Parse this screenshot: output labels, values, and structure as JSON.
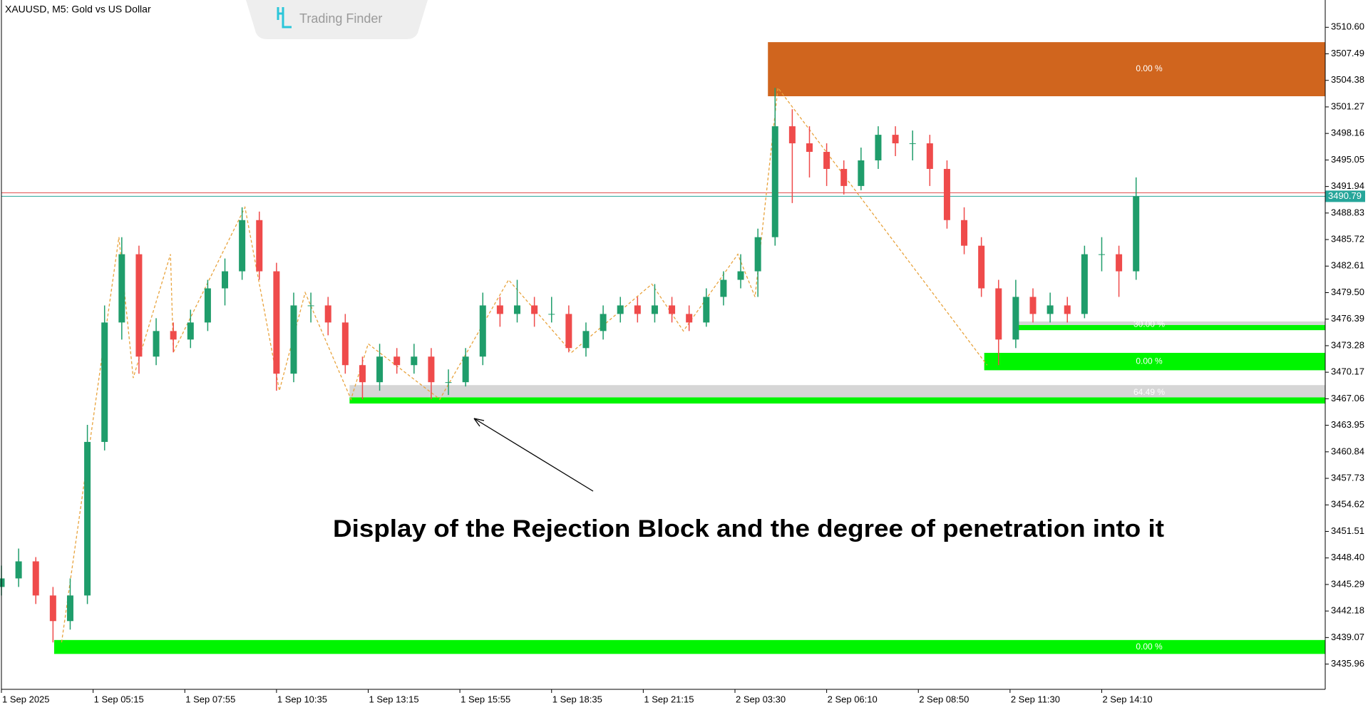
{
  "chart_data": {
    "type": "candlestick",
    "title": "XAUUSD, M5:  Gold vs US Dollar",
    "watermark": "Trading Finder",
    "annotation": "Display of the Rejection Block and the degree of penetration into it",
    "up_color": "#1f9d6b",
    "down_color": "#ef4b4b",
    "xlim": [
      0,
      462
    ],
    "ylim": [
      3433.0,
      3513.8
    ],
    "xticks": [
      {
        "value": 0,
        "label": "1 Sep 2025"
      },
      {
        "value": 32,
        "label": "1 Sep 05:15"
      },
      {
        "value": 64,
        "label": "1 Sep 07:55"
      },
      {
        "value": 96,
        "label": "1 Sep 10:35"
      },
      {
        "value": 128,
        "label": "1 Sep 13:15"
      },
      {
        "value": 160,
        "label": "1 Sep 15:55"
      },
      {
        "value": 192,
        "label": "1 Sep 18:35"
      },
      {
        "value": 224,
        "label": "1 Sep 21:15"
      },
      {
        "value": 256,
        "label": "2 Sep 03:30"
      },
      {
        "value": 288,
        "label": "2 Sep 06:10"
      },
      {
        "value": 320,
        "label": "2 Sep 08:50"
      },
      {
        "value": 352,
        "label": "2 Sep 11:30"
      },
      {
        "value": 384,
        "label": "2 Sep 14:10"
      }
    ],
    "yticks": [
      {
        "value": 3510.6,
        "label": "3510.60"
      },
      3507.49,
      3504.38,
      3501.27,
      3498.16,
      3495.05,
      3491.94,
      3488.83,
      3485.72,
      3482.61,
      {
        "value": 3479.5,
        "label": "3479.50"
      },
      3476.39,
      3473.28,
      3470.17,
      3467.06,
      3463.95,
      3460.84,
      3457.73,
      3454.62,
      3451.51,
      {
        "value": 3448.4,
        "label": "3448.40"
      },
      3445.29,
      3442.18,
      3439.07,
      3435.96
    ],
    "candles": [
      [
        0,
        3445,
        3447.5,
        3444,
        3446
      ],
      [
        6,
        3446,
        3449.5,
        3445,
        3448
      ],
      [
        12,
        3448,
        3448.5,
        3443,
        3444
      ],
      [
        18,
        3444,
        3445,
        3438.5,
        3441
      ],
      [
        24,
        3441,
        3446,
        3440,
        3444
      ],
      [
        30,
        3444,
        3464,
        3443,
        3462
      ],
      [
        36,
        3462,
        3478,
        3461,
        3476
      ],
      [
        42,
        3476,
        3486,
        3474,
        3484
      ],
      [
        48,
        3484,
        3485,
        3470,
        3472
      ],
      [
        54,
        3472,
        3476.5,
        3471,
        3475
      ],
      [
        60,
        3475,
        3476,
        3472.5,
        3474
      ],
      [
        66,
        3474,
        3477.5,
        3473,
        3476
      ],
      [
        72,
        3476,
        3481,
        3475,
        3480
      ],
      [
        78,
        3480,
        3483.5,
        3478,
        3482
      ],
      [
        84,
        3482,
        3489.5,
        3481,
        3488
      ],
      [
        90,
        3488,
        3489,
        3481,
        3482
      ],
      [
        96,
        3482,
        3483,
        3468,
        3470
      ],
      [
        102,
        3470,
        3479.5,
        3469,
        3478
      ],
      [
        108,
        3478,
        3479.5,
        3476,
        3478
      ],
      [
        114,
        3478,
        3479,
        3474.5,
        3476
      ],
      [
        120,
        3476,
        3477,
        3470,
        3471
      ],
      [
        126,
        3471,
        3472,
        3467,
        3469
      ],
      [
        132,
        3469,
        3473.5,
        3468,
        3472
      ],
      [
        138,
        3472,
        3473,
        3470,
        3471
      ],
      [
        144,
        3471,
        3473.5,
        3470,
        3472
      ],
      [
        150,
        3472,
        3473,
        3467,
        3469
      ],
      [
        156,
        3469,
        3470.5,
        3467.5,
        3469
      ],
      [
        162,
        3469,
        3473,
        3468.5,
        3472
      ],
      [
        168,
        3472,
        3479.5,
        3471,
        3478
      ],
      [
        174,
        3478,
        3479,
        3475.5,
        3477
      ],
      [
        180,
        3477,
        3481,
        3476,
        3478
      ],
      [
        186,
        3478,
        3479,
        3475.5,
        3477
      ],
      [
        192,
        3477,
        3479,
        3476,
        3477
      ],
      [
        198,
        3477,
        3478,
        3472.5,
        3473
      ],
      [
        204,
        3473,
        3476,
        3472,
        3475
      ],
      [
        210,
        3475,
        3478,
        3474,
        3477
      ],
      [
        216,
        3477,
        3479,
        3476,
        3478
      ],
      [
        222,
        3478,
        3479,
        3476,
        3477
      ],
      [
        228,
        3477,
        3480.5,
        3476,
        3478
      ],
      [
        234,
        3478,
        3479,
        3476,
        3477
      ],
      [
        240,
        3477,
        3478,
        3475,
        3476
      ],
      [
        246,
        3476,
        3480,
        3475.5,
        3479
      ],
      [
        252,
        3479,
        3482,
        3478,
        3481
      ],
      [
        258,
        3481,
        3484,
        3480,
        3482
      ],
      [
        264,
        3482,
        3487,
        3479,
        3486
      ],
      [
        270,
        3486,
        3503.5,
        3485,
        3499
      ],
      [
        276,
        3499,
        3501,
        3490,
        3497
      ],
      [
        282,
        3497,
        3499,
        3493,
        3496
      ],
      [
        288,
        3496,
        3497,
        3492,
        3494
      ],
      [
        294,
        3494,
        3495,
        3491,
        3492
      ],
      [
        300,
        3492,
        3496.5,
        3491.5,
        3495
      ],
      [
        306,
        3495,
        3499,
        3494,
        3498
      ],
      [
        312,
        3498,
        3499,
        3495.5,
        3497
      ],
      [
        318,
        3497,
        3498.5,
        3495,
        3497
      ],
      [
        324,
        3497,
        3498,
        3492,
        3494
      ],
      [
        330,
        3494,
        3495,
        3487,
        3488
      ],
      [
        336,
        3488,
        3489.5,
        3484,
        3485
      ],
      [
        342,
        3485,
        3486,
        3479,
        3480
      ],
      [
        348,
        3480,
        3481,
        3471,
        3474
      ],
      [
        354,
        3474,
        3481,
        3473,
        3479
      ],
      [
        360,
        3479,
        3480,
        3476,
        3477
      ],
      [
        366,
        3477,
        3479.5,
        3476,
        3478
      ],
      [
        372,
        3478,
        3479,
        3476,
        3477
      ],
      [
        378,
        3477,
        3485,
        3476.5,
        3484
      ],
      [
        384,
        3484,
        3486,
        3482,
        3484
      ],
      [
        390,
        3484,
        3485,
        3479,
        3482
      ],
      [
        396,
        3482,
        3493,
        3481,
        3490.79
      ]
    ],
    "zigzag": {
      "color": "#e8a33d",
      "x": [
        21,
        41,
        46,
        59,
        60,
        85,
        97,
        106,
        122,
        128,
        153,
        177,
        199,
        227,
        238,
        257,
        263,
        271,
        344
      ],
      "y": [
        3438.5,
        3486,
        3469.5,
        3484,
        3472.5,
        3489.5,
        3468,
        3479.5,
        3467,
        3473.5,
        3467,
        3481,
        3472.5,
        3480.5,
        3475,
        3484,
        3479,
        3503.5,
        3471
      ]
    },
    "zones": [
      {
        "x": 267.5,
        "top": 3508.86,
        "bottom": 3502.52,
        "color": "#d0651e",
        "label": "0.00 %"
      },
      {
        "x": 353,
        "grey_top": 3476.12,
        "top": 3475.7,
        "bottom": 3475.1,
        "color": "#00f500",
        "label": "30.00 %"
      },
      {
        "x": 343,
        "top": 3472.44,
        "bottom": 3470.4,
        "color": "#00f500",
        "label": "0.00 %"
      },
      {
        "x": 121.5,
        "grey_top": 3468.66,
        "top": 3467.22,
        "bottom": 3466.5,
        "color": "#00f500",
        "label": "64.49 %"
      },
      {
        "x": 18.4,
        "top": 3438.78,
        "bottom": 3437.15,
        "color": "#00f500",
        "label": "0.00 %"
      }
    ],
    "price": {
      "bid": 3490.79,
      "ask": 3491.2,
      "bid_color": "#26a69a",
      "ask_color": "#e05050"
    }
  }
}
